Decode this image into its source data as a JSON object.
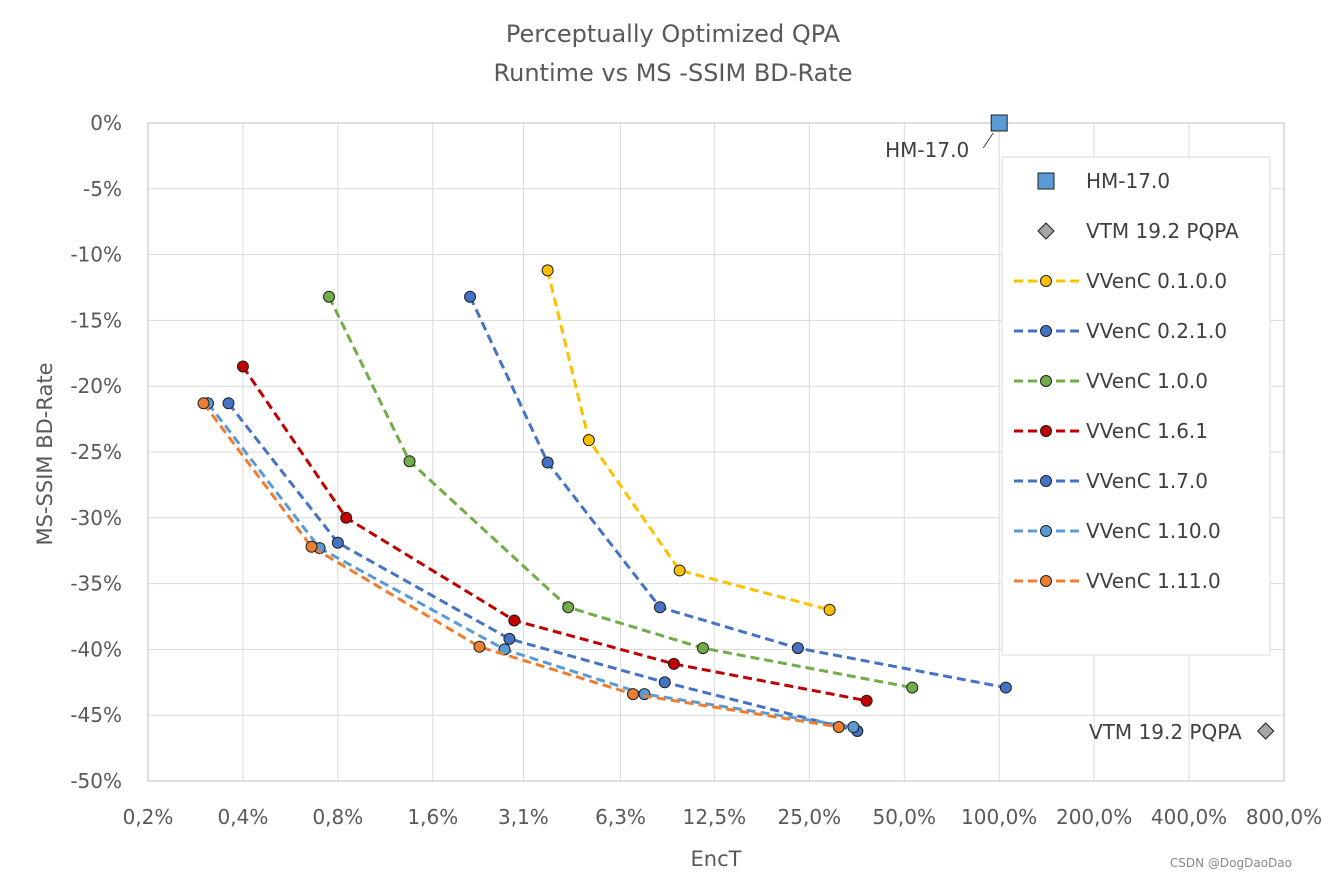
{
  "watermark": "CSDN @DogDaoDao",
  "chart_data": {
    "type": "line",
    "title": [
      "Perceptually Optimized QPA",
      "Runtime vs MS -SSIM BD-Rate"
    ],
    "xlabel": "EncT",
    "ylabel": "MS-SSIM BD-Rate",
    "x_scale": "log2",
    "xlim": [
      0.2,
      800
    ],
    "ylim": [
      -50,
      0
    ],
    "x_ticks": [
      0.2,
      0.4,
      0.8,
      1.6,
      3.1,
      6.3,
      12.5,
      25.0,
      50.0,
      100.0,
      200.0,
      400.0,
      800.0
    ],
    "x_tick_labels": [
      "0,2%",
      "0,4%",
      "0,8%",
      "1,6%",
      "3,1%",
      "6,3%",
      "12,5%",
      "25,0%",
      "50,0%",
      "100,0%",
      "200,0%",
      "400,0%",
      "800,0%"
    ],
    "y_ticks": [
      0,
      -5,
      -10,
      -15,
      -20,
      -25,
      -30,
      -35,
      -40,
      -45,
      -50
    ],
    "y_tick_labels": [
      "0%",
      "-5%",
      "-10%",
      "-15%",
      "-20%",
      "-25%",
      "-30%",
      "-35%",
      "-40%",
      "-45%",
      "-50%"
    ],
    "grid": "horizontal and vertical",
    "legend_position": "top-right",
    "series": [
      {
        "name": "HM-17.0",
        "style": "marker",
        "marker": "square",
        "color": "#5B9BD5",
        "points": [
          [
            100.0,
            0.0
          ]
        ],
        "annotation": "HM-17.0"
      },
      {
        "name": "VTM 19.2 PQPA",
        "style": "marker",
        "marker": "diamond",
        "color": "#A5A5A5",
        "points": [
          [
            700.0,
            -46.2
          ]
        ],
        "annotation": "VTM 19.2 PQPA"
      },
      {
        "name": "VVenC 0.1.0.0",
        "style": "dashed",
        "marker": "circle",
        "color": "#FFC000",
        "points": [
          [
            3.7,
            -11.2
          ],
          [
            5.0,
            -24.1
          ],
          [
            9.7,
            -34.0
          ],
          [
            29.0,
            -37.0
          ]
        ]
      },
      {
        "name": "VVenC 0.2.1.0",
        "style": "dashed",
        "marker": "circle",
        "color": "#4472C4",
        "points": [
          [
            2.1,
            -13.2
          ],
          [
            3.7,
            -25.8
          ],
          [
            8.4,
            -36.8
          ],
          [
            23.0,
            -39.9
          ],
          [
            105.0,
            -42.9
          ]
        ]
      },
      {
        "name": "VVenC 1.0.0",
        "style": "dashed",
        "marker": "circle",
        "color": "#70AD47",
        "points": [
          [
            0.75,
            -13.2
          ],
          [
            1.35,
            -25.7
          ],
          [
            4.3,
            -36.8
          ],
          [
            11.5,
            -39.9
          ],
          [
            53.0,
            -42.9
          ]
        ]
      },
      {
        "name": "VVenC 1.6.1",
        "style": "dashed",
        "marker": "circle",
        "color": "#C00000",
        "points": [
          [
            0.4,
            -18.5
          ],
          [
            0.85,
            -30.0
          ],
          [
            2.9,
            -37.8
          ],
          [
            9.3,
            -41.1
          ],
          [
            38.0,
            -43.9
          ]
        ]
      },
      {
        "name": "VVenC 1.7.0",
        "style": "dashed",
        "marker": "circle",
        "color": "#4472C4",
        "points": [
          [
            0.36,
            -21.3
          ],
          [
            0.8,
            -31.9
          ],
          [
            2.8,
            -39.2
          ],
          [
            8.7,
            -42.5
          ],
          [
            35.5,
            -46.2
          ]
        ]
      },
      {
        "name": "VVenC 1.10.0",
        "style": "dashed",
        "marker": "circle",
        "color": "#5B9BD5",
        "points": [
          [
            0.31,
            -21.3
          ],
          [
            0.7,
            -32.3
          ],
          [
            2.7,
            -40.0
          ],
          [
            7.5,
            -43.4
          ],
          [
            34.5,
            -45.9
          ]
        ]
      },
      {
        "name": "VVenC 1.11.0",
        "style": "dashed",
        "marker": "circle",
        "color": "#ED7D31",
        "points": [
          [
            0.3,
            -21.3
          ],
          [
            0.66,
            -32.2
          ],
          [
            2.25,
            -39.8
          ],
          [
            6.9,
            -43.4
          ],
          [
            31.0,
            -45.9
          ]
        ]
      }
    ]
  }
}
